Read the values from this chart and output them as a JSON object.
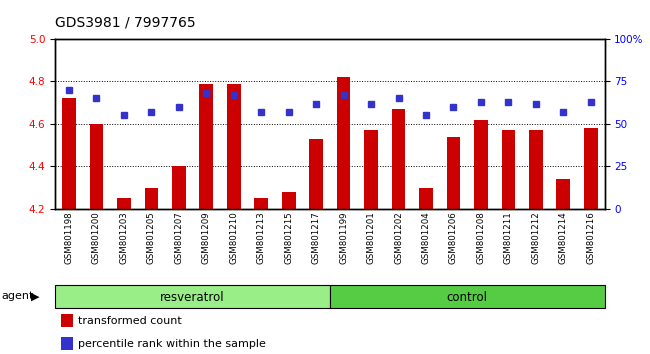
{
  "title": "GDS3981 / 7997765",
  "samples": [
    "GSM801198",
    "GSM801200",
    "GSM801203",
    "GSM801205",
    "GSM801207",
    "GSM801209",
    "GSM801210",
    "GSM801213",
    "GSM801215",
    "GSM801217",
    "GSM801199",
    "GSM801201",
    "GSM801202",
    "GSM801204",
    "GSM801206",
    "GSM801208",
    "GSM801211",
    "GSM801212",
    "GSM801214",
    "GSM801216"
  ],
  "transformed_count": [
    4.72,
    4.6,
    4.25,
    4.3,
    4.4,
    4.79,
    4.79,
    4.25,
    4.28,
    4.53,
    4.82,
    4.57,
    4.67,
    4.3,
    4.54,
    4.62,
    4.57,
    4.57,
    4.34,
    4.58
  ],
  "percentile_rank": [
    70,
    65,
    55,
    57,
    60,
    68,
    67,
    57,
    57,
    62,
    67,
    62,
    65,
    55,
    60,
    63,
    63,
    62,
    57,
    63
  ],
  "ylim_left": [
    4.2,
    5.0
  ],
  "ylim_right": [
    0,
    100
  ],
  "yticks_left": [
    4.2,
    4.4,
    4.6,
    4.8,
    5.0
  ],
  "yticks_right": [
    0,
    25,
    50,
    75,
    100
  ],
  "ytick_labels_right": [
    "0",
    "25",
    "50",
    "75",
    "100%"
  ],
  "bar_color": "#cc0000",
  "dot_color": "#3333cc",
  "resveratrol_color": "#99ee88",
  "control_color": "#55cc44",
  "bar_width": 0.5,
  "agent_label": "agent",
  "resveratrol_label": "resveratrol",
  "control_label": "control",
  "legend_tc": "transformed count",
  "legend_pr": "percentile rank within the sample",
  "tick_label_fontsize": 7.5,
  "title_fontsize": 10,
  "n_resveratrol": 10,
  "n_control": 10
}
